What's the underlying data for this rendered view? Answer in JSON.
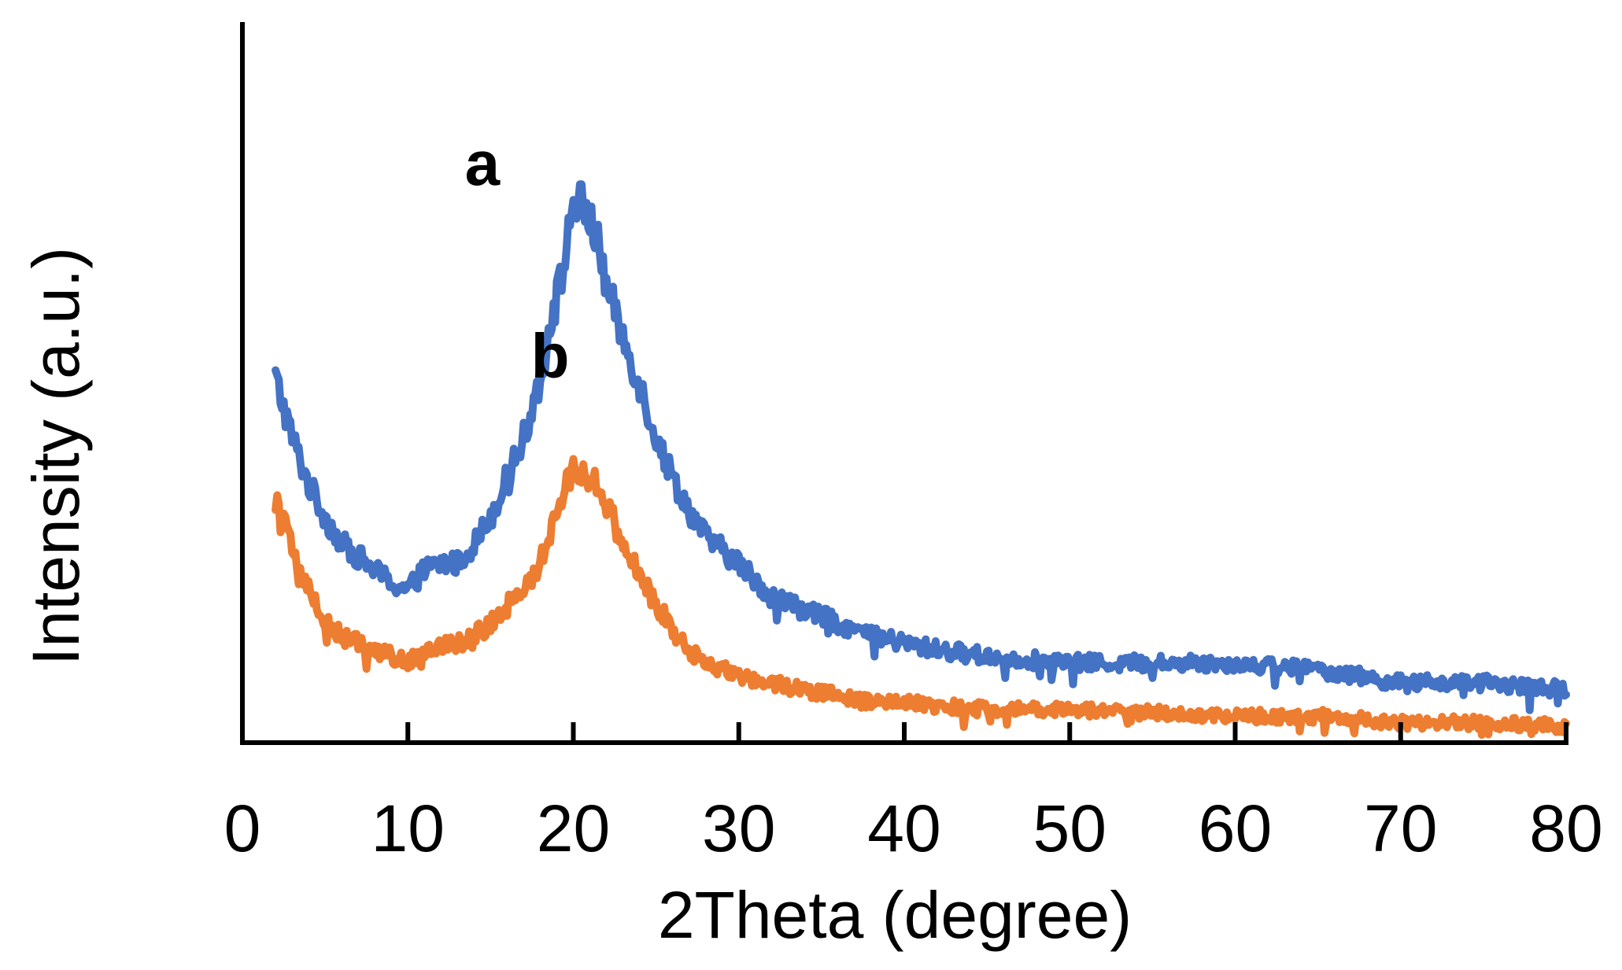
{
  "chart_data": {
    "type": "line",
    "title": "",
    "xlabel": "2Theta (degree)",
    "ylabel": "Intensity (a.u.)",
    "xlim": [
      0,
      80
    ],
    "ylim": [
      0,
      100
    ],
    "xticks": [
      0,
      10,
      20,
      30,
      40,
      50,
      60,
      70,
      80
    ],
    "xtick_labels": [
      "0",
      "10",
      "20",
      "30",
      "40",
      "50",
      "60",
      "70",
      "80"
    ],
    "grid": false,
    "legend": "none",
    "series": [
      {
        "name": "a",
        "label": "a",
        "color": "#4472C4",
        "x": [
          2,
          3,
          4,
          5,
          6,
          7,
          8,
          9,
          10,
          11,
          12,
          13,
          14,
          15,
          16,
          17,
          18,
          19,
          19.5,
          20,
          20.5,
          21,
          21.5,
          22,
          23,
          24,
          25,
          26,
          27,
          28,
          29,
          30,
          32,
          34,
          36,
          38,
          40,
          42,
          45,
          50,
          55,
          60,
          65,
          70,
          75,
          80
        ],
        "y": [
          55,
          46,
          39,
          34,
          30,
          28,
          26,
          24,
          23,
          26,
          27,
          27,
          30,
          34,
          40,
          46,
          55,
          67,
          73,
          82,
          81,
          79,
          75,
          69,
          61,
          54,
          46,
          40,
          35,
          31,
          29,
          27,
          22,
          20,
          18,
          16,
          15,
          14,
          13,
          12,
          12,
          12,
          11,
          9,
          9,
          8
        ],
        "annotation": {
          "text": "a",
          "x": 14.5,
          "y": 84
        }
      },
      {
        "name": "b",
        "label": "b",
        "color": "#ED7D31",
        "x": [
          2,
          3,
          4,
          5,
          6,
          7,
          8,
          9,
          10,
          11,
          12,
          13,
          14,
          15,
          16,
          17,
          18,
          19,
          19.5,
          20,
          20.5,
          21,
          21.5,
          22,
          23,
          24,
          25,
          26,
          27,
          28,
          29,
          30,
          32,
          34,
          36,
          38,
          40,
          42,
          45,
          50,
          55,
          60,
          65,
          70,
          75,
          80
        ],
        "y": [
          37,
          29,
          23,
          18,
          16,
          15,
          14,
          13,
          12,
          14,
          15,
          15,
          16,
          18,
          21,
          23,
          27,
          35,
          39,
          41,
          41,
          40,
          39,
          36,
          30,
          25,
          21,
          17,
          14,
          12,
          11,
          10,
          9,
          8,
          7,
          6,
          6,
          5.5,
          5,
          5,
          4.5,
          4,
          4,
          3,
          3,
          2.5
        ],
        "annotation": {
          "text": "b",
          "x": 18.6,
          "y": 55
        }
      }
    ]
  }
}
